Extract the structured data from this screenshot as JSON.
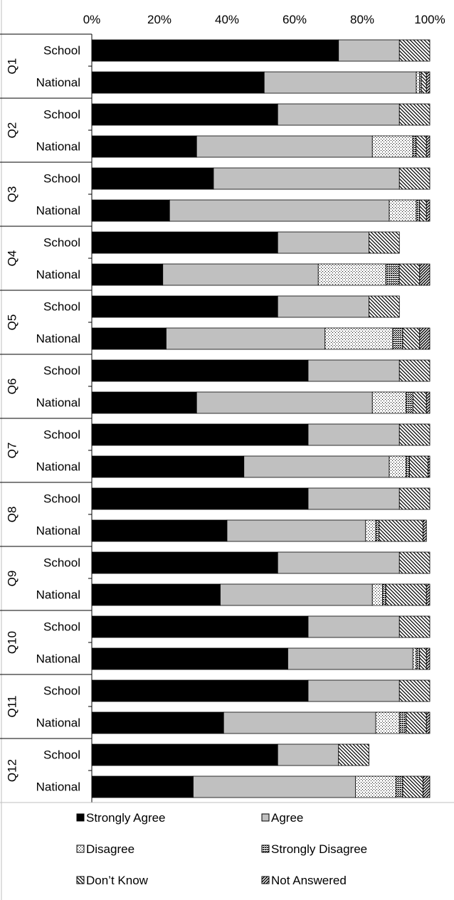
{
  "chart_data": {
    "type": "bar",
    "orientation": "horizontal",
    "stacked": "percent",
    "x_ticks": [
      "0%",
      "20%",
      "40%",
      "60%",
      "80%",
      "100%"
    ],
    "xlim": [
      0,
      100
    ],
    "x_axis_position": "top",
    "grid": false,
    "legend_position": "bottom",
    "groups": [
      "Q1",
      "Q2",
      "Q3",
      "Q4",
      "Q5",
      "Q6",
      "Q7",
      "Q8",
      "Q9",
      "Q10",
      "Q11",
      "Q12"
    ],
    "row_labels": [
      "School",
      "National"
    ],
    "series": [
      {
        "name": "Strongly Agree",
        "color": "#000000",
        "pattern": "solid",
        "values": [
          [
            73,
            51
          ],
          [
            55,
            31
          ],
          [
            36,
            23
          ],
          [
            55,
            21
          ],
          [
            55,
            22
          ],
          [
            64,
            31
          ],
          [
            64,
            45
          ],
          [
            64,
            40
          ],
          [
            55,
            38
          ],
          [
            64,
            58
          ],
          [
            64,
            39
          ],
          [
            55,
            30
          ]
        ]
      },
      {
        "name": "Agree",
        "color": "#c0c0c0",
        "pattern": "solid",
        "values": [
          [
            18,
            45
          ],
          [
            36,
            52
          ],
          [
            55,
            65
          ],
          [
            27,
            46
          ],
          [
            27,
            47
          ],
          [
            27,
            52
          ],
          [
            27,
            43
          ],
          [
            27,
            41
          ],
          [
            36,
            45
          ],
          [
            27,
            37
          ],
          [
            27,
            45
          ],
          [
            18,
            48
          ]
        ]
      },
      {
        "name": "Disagree",
        "color": "#ffffff",
        "pattern": "dots",
        "values": [
          [
            0,
            1
          ],
          [
            0,
            12
          ],
          [
            0,
            8
          ],
          [
            0,
            20
          ],
          [
            0,
            20
          ],
          [
            0,
            10
          ],
          [
            0,
            5
          ],
          [
            0,
            3
          ],
          [
            0,
            3
          ],
          [
            0,
            1
          ],
          [
            0,
            7
          ],
          [
            0,
            12
          ]
        ]
      },
      {
        "name": "Strongly Disagree",
        "color": "#ffffff",
        "pattern": "dense-dots",
        "values": [
          [
            0,
            0.5
          ],
          [
            0,
            1
          ],
          [
            0,
            1
          ],
          [
            0,
            4
          ],
          [
            0,
            3
          ],
          [
            0,
            2
          ],
          [
            0,
            1
          ],
          [
            0,
            1
          ],
          [
            0,
            1
          ],
          [
            0,
            1
          ],
          [
            0,
            2
          ],
          [
            0,
            2
          ]
        ]
      },
      {
        "name": "Don’t Know",
        "color": "#ffffff",
        "pattern": "back-diagonal",
        "values": [
          [
            9,
            1.5
          ],
          [
            9,
            3
          ],
          [
            9,
            2
          ],
          [
            9,
            6
          ],
          [
            9,
            5
          ],
          [
            9,
            4
          ],
          [
            9,
            5.5
          ],
          [
            9,
            13
          ],
          [
            9,
            12
          ],
          [
            9,
            2
          ],
          [
            9,
            6
          ],
          [
            9,
            6
          ]
        ]
      },
      {
        "name": "Not Answered",
        "color": "#ffffff",
        "pattern": "forward-diagonal",
        "values": [
          [
            0,
            1
          ],
          [
            0,
            1
          ],
          [
            0,
            1
          ],
          [
            0,
            3
          ],
          [
            0,
            3
          ],
          [
            0,
            1
          ],
          [
            0,
            0.5
          ],
          [
            0,
            1
          ],
          [
            0,
            1
          ],
          [
            0,
            1
          ],
          [
            0,
            1
          ],
          [
            0,
            2
          ]
        ]
      }
    ]
  }
}
